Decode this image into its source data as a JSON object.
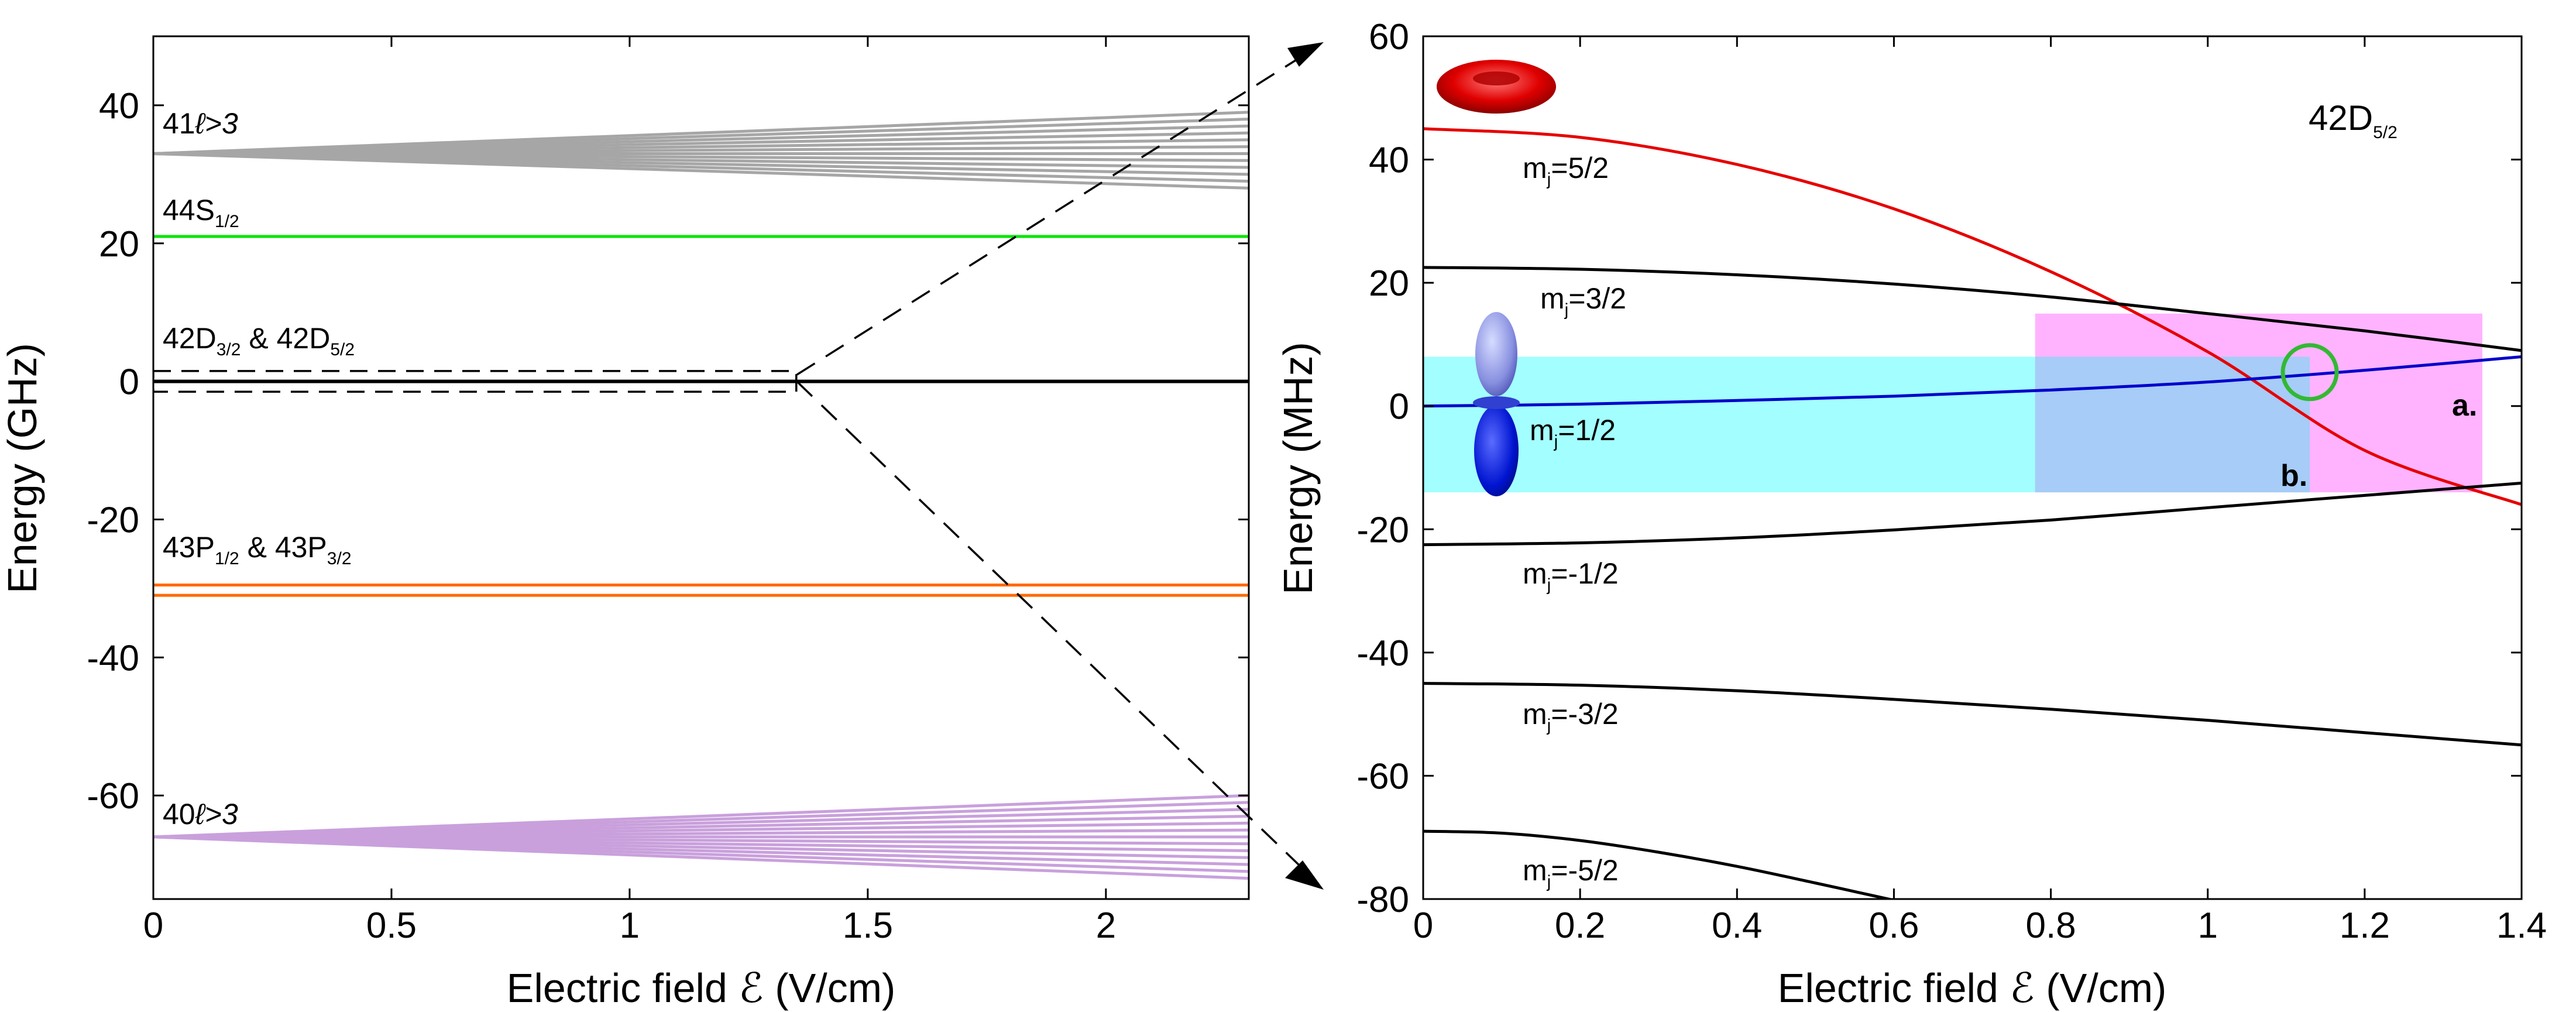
{
  "chart_data": [
    {
      "type": "line",
      "panel": "left",
      "xlabel": "Electric field ℰ (V/cm)",
      "ylabel": "Energy (GHz)",
      "xlim": [
        0,
        2.3
      ],
      "ylim": [
        -75,
        50
      ],
      "xticks": [
        0,
        0.5,
        1,
        1.5,
        2
      ],
      "xtick_labels": [
        "0",
        "0.5",
        "1",
        "1.5",
        "2"
      ],
      "yticks": [
        -60,
        -40,
        -20,
        0,
        20,
        40
      ],
      "ytick_labels": [
        "-60",
        "-40",
        "-20",
        "0",
        "20",
        "40"
      ],
      "manifold_labels": {
        "n41": {
          "text": "41",
          "ell": "ℓ>3"
        },
        "s44": {
          "text": "44S",
          "sub": "1/2"
        },
        "d42": {
          "a": "42D",
          "a_sub": "3/2",
          "amp": " & 42D",
          "b_sub": "5/2"
        },
        "p43": {
          "a": "43P",
          "a_sub": "1/2",
          "amp": " & 43P",
          "b_sub": "3/2"
        },
        "n40": {
          "text": "40",
          "ell": "ℓ>3"
        }
      },
      "series": [
        {
          "name": "41 l>3 manifold",
          "color": "#a6a6a6",
          "start": 33,
          "ends": [
            39,
            38,
            37,
            36,
            35,
            34,
            33,
            32,
            31,
            30,
            29,
            28
          ]
        },
        {
          "name": "44S1/2",
          "color": "#00e600",
          "start": 21,
          "ends": [
            21
          ]
        },
        {
          "name": "42D3/2 & 42D5/2",
          "color": "#000000",
          "start": 0,
          "ends": [
            0
          ]
        },
        {
          "name": "43P1/2",
          "color": "#ff6a00",
          "start": -29.5,
          "ends": [
            -29.5
          ]
        },
        {
          "name": "43P3/2",
          "color": "#ff6a00",
          "start": -31,
          "ends": [
            -31
          ]
        },
        {
          "name": "40 l>3 manifold",
          "color": "#c9a0dc",
          "start": -66,
          "ends": [
            -60,
            -61,
            -62,
            -63,
            -64,
            -65,
            -66,
            -67,
            -68,
            -69,
            -70,
            -71,
            -72
          ]
        }
      ],
      "zoom_box": {
        "x": [
          0,
          1.35
        ],
        "y": [
          -1.5,
          1.5
        ]
      }
    },
    {
      "type": "line",
      "panel": "right",
      "xlabel": "Electric field ℰ (V/cm)",
      "ylabel": "Energy (MHz)",
      "xlim": [
        0,
        1.4
      ],
      "ylim": [
        -80,
        60
      ],
      "xticks": [
        0,
        0.2,
        0.4,
        0.6,
        0.8,
        1,
        1.2,
        1.4
      ],
      "xtick_labels": [
        "0",
        "0.2",
        "0.4",
        "0.6",
        "0.8",
        "1",
        "1.2",
        "1.4"
      ],
      "yticks": [
        -80,
        -60,
        -40,
        -20,
        0,
        20,
        40,
        60
      ],
      "ytick_labels": [
        "-80",
        "-60",
        "-40",
        "-20",
        "0",
        "20",
        "40",
        "60"
      ],
      "state_label": {
        "text": "42D",
        "sub": "5/2"
      },
      "series": [
        {
          "name": "mj=5/2",
          "label": "m",
          "label_sub": "j",
          "label_rest": "=5/2",
          "color": "#e60000",
          "x": [
            0,
            0.2,
            0.4,
            0.6,
            0.8,
            1.0,
            1.2,
            1.4
          ],
          "y": [
            45,
            43.6,
            39.2,
            32.0,
            21.8,
            8.8,
            -7.2,
            -16
          ]
        },
        {
          "name": "mj=3/2",
          "label": "m",
          "label_sub": "j",
          "label_rest": "=3/2",
          "color": "#000000",
          "x": [
            0,
            0.2,
            0.4,
            0.6,
            0.8,
            1.0,
            1.2,
            1.4
          ],
          "y": [
            22.5,
            22.2,
            21.3,
            19.8,
            17.7,
            15.0,
            12.2,
            9
          ]
        },
        {
          "name": "mj=1/2",
          "label": "m",
          "label_sub": "j",
          "label_rest": "=1/2",
          "color": "#0000cc",
          "x": [
            0,
            0.2,
            0.4,
            0.6,
            0.8,
            1.0,
            1.2,
            1.4
          ],
          "y": [
            0,
            0.3,
            0.9,
            1.6,
            2.6,
            3.9,
            5.8,
            8
          ]
        },
        {
          "name": "mj=-1/2",
          "label": "m",
          "label_sub": "j",
          "label_rest": "=-1/2",
          "color": "#000000",
          "x": [
            0,
            0.2,
            0.4,
            0.6,
            0.8,
            1.0,
            1.2,
            1.4
          ],
          "y": [
            -22.5,
            -22.2,
            -21.4,
            -20.1,
            -18.5,
            -16.5,
            -14.5,
            -12.5
          ]
        },
        {
          "name": "mj=-3/2",
          "label": "m",
          "label_sub": "j",
          "label_rest": "=-3/2",
          "color": "#000000",
          "x": [
            0,
            0.2,
            0.4,
            0.6,
            0.8,
            1.0,
            1.2,
            1.4
          ],
          "y": [
            -45,
            -45.3,
            -46.2,
            -47.6,
            -49.2,
            -51.0,
            -53.0,
            -55
          ]
        },
        {
          "name": "mj=-5/2",
          "label": "m",
          "label_sub": "j",
          "label_rest": "=-5/2",
          "color": "#000000",
          "x": [
            0,
            0.1,
            0.2,
            0.3,
            0.4,
            0.5,
            0.6
          ],
          "y": [
            -69,
            -69.3,
            -70.5,
            -72.4,
            -74.7,
            -77.4,
            -80.2
          ]
        }
      ],
      "regions": [
        {
          "name": "a.",
          "color": "#ff99ff",
          "x": [
            0.78,
            1.35
          ],
          "y": [
            -14,
            15
          ]
        },
        {
          "name": "b.",
          "color": "#66ffff",
          "x": [
            0,
            1.13
          ],
          "y": [
            -14,
            8
          ]
        }
      ],
      "marker": {
        "type": "circle",
        "color": "#33b833",
        "x": 1.13,
        "y": 5.5
      }
    }
  ]
}
